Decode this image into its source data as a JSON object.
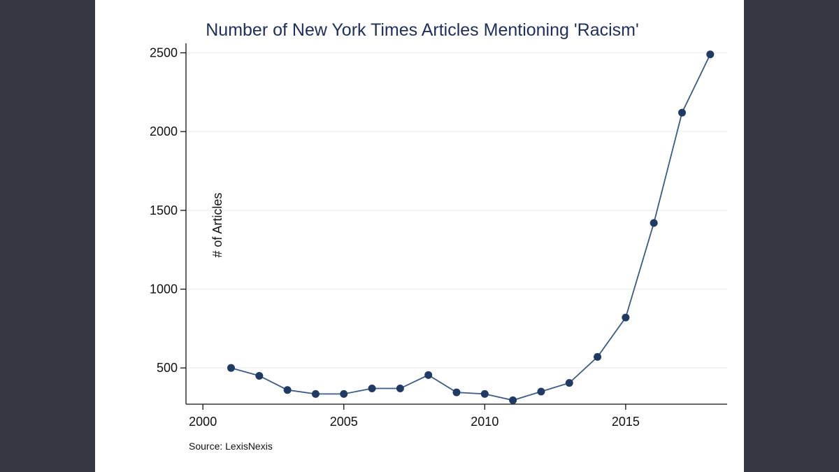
{
  "chart_data": {
    "type": "line",
    "title": "Number of New York Times Articles Mentioning 'Racism'",
    "xlabel": "",
    "ylabel": "# of Articles",
    "note": "Source: LexisNexis",
    "x": [
      2001,
      2002,
      2003,
      2004,
      2005,
      2006,
      2007,
      2008,
      2009,
      2010,
      2011,
      2012,
      2013,
      2014,
      2015,
      2016,
      2017,
      2018
    ],
    "series": [
      {
        "values": [
          500,
          450,
          360,
          335,
          335,
          370,
          370,
          455,
          345,
          335,
          295,
          350,
          405,
          570,
          820,
          1420,
          2120,
          2490
        ]
      }
    ],
    "xlim": [
      1999.4,
      2018.6
    ],
    "ylim": [
      270,
      2560
    ],
    "xticks": [
      2000,
      2005,
      2010,
      2015
    ],
    "yticks": [
      500,
      1000,
      1500,
      2000,
      2500
    ],
    "grid": true,
    "colors": {
      "series": "#1f3a63",
      "line": "#3b5b86",
      "grid": "#eef1f4"
    }
  }
}
